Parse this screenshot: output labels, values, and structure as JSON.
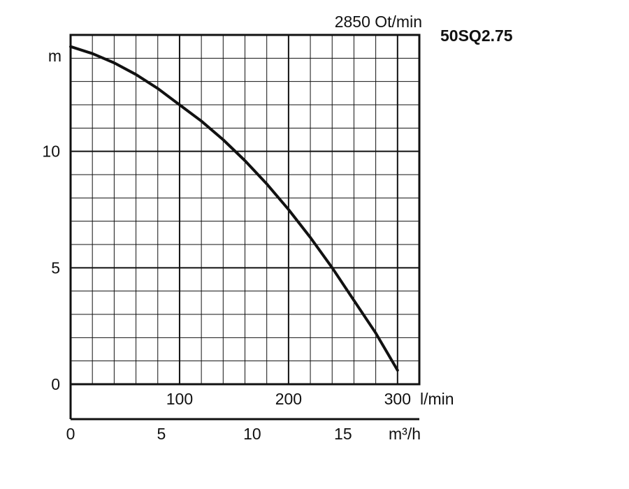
{
  "chart_data": {
    "type": "line",
    "title": "",
    "model": "50SQ2.75",
    "speed_label": "2850 Ot/min",
    "ylabel": "m",
    "xlabel_lmin": "l/min",
    "xlabel_m3h": "m³/h",
    "xlim_lmin": [
      0,
      320
    ],
    "ylim": [
      0,
      15
    ],
    "y_ticks": [
      0,
      5,
      10
    ],
    "x_ticks_lmin": [
      100,
      200,
      300
    ],
    "x_ticks_m3h": [
      0,
      5,
      10,
      15
    ],
    "grid": true,
    "series": [
      {
        "x": [
          0,
          20,
          40,
          60,
          80,
          100,
          120,
          140,
          160,
          180,
          200,
          220,
          240,
          260,
          280,
          300
        ],
        "y": [
          14.5,
          14.2,
          13.8,
          13.3,
          12.7,
          12.0,
          11.3,
          10.5,
          9.6,
          8.6,
          7.5,
          6.3,
          5.0,
          3.6,
          2.2,
          0.6
        ]
      }
    ]
  }
}
